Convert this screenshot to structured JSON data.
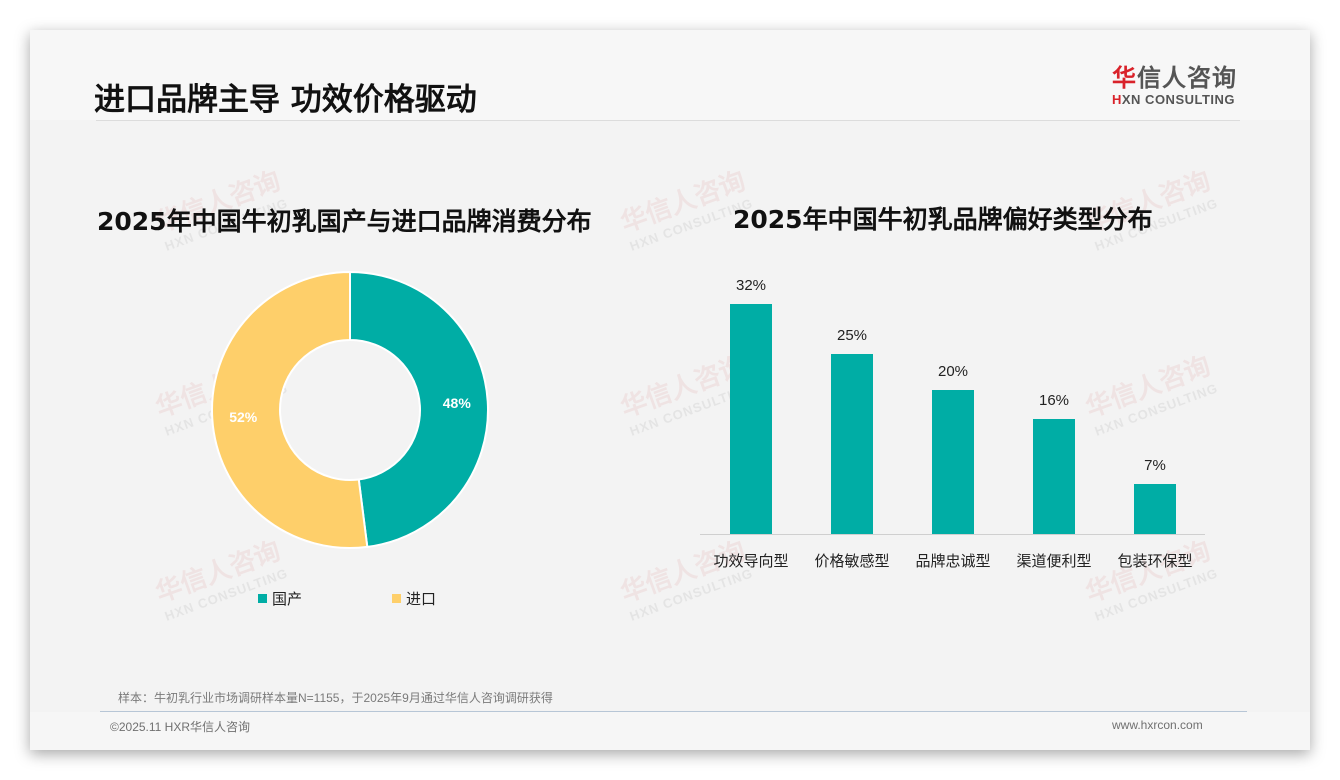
{
  "header": {
    "title": "进口品牌主导 功效价格驱动",
    "logo_cn_first": "华",
    "logo_cn_rest": "信人咨询",
    "logo_en_first": "H",
    "logo_en_rest": "XN CONSULTING"
  },
  "watermark": {
    "cn": "华信人咨询",
    "en": "HXN CONSULTING"
  },
  "colors": {
    "teal": "#00ada5",
    "yellow": "#fecf6a",
    "title_red": "#d9222a"
  },
  "left_chart": {
    "title": "2025年中国牛初乳国产与进口品牌消费分布",
    "segments": [
      {
        "label": "国产",
        "value": 48,
        "display": "48%",
        "color": "#00ada5"
      },
      {
        "label": "进口",
        "value": 52,
        "display": "52%",
        "color": "#fecf6a"
      }
    ]
  },
  "right_chart": {
    "title": "2025年中国牛初乳品牌偏好类型分布",
    "bars": [
      {
        "label": "功效导向型",
        "value": 32,
        "display": "32%"
      },
      {
        "label": "价格敏感型",
        "value": 25,
        "display": "25%"
      },
      {
        "label": "品牌忠诚型",
        "value": 20,
        "display": "20%"
      },
      {
        "label": "渠道便利型",
        "value": 16,
        "display": "16%"
      },
      {
        "label": "包装环保型",
        "value": 7,
        "display": "7%"
      }
    ]
  },
  "chart_data": [
    {
      "type": "pie",
      "variant": "donut",
      "title": "2025年中国牛初乳国产与进口品牌消费分布",
      "categories": [
        "国产",
        "进口"
      ],
      "values": [
        48,
        52
      ],
      "unit": "%",
      "legend_position": "bottom",
      "colors": [
        "#00ada5",
        "#fecf6a"
      ]
    },
    {
      "type": "bar",
      "title": "2025年中国牛初乳品牌偏好类型分布",
      "categories": [
        "功效导向型",
        "价格敏感型",
        "品牌忠诚型",
        "渠道便利型",
        "包装环保型"
      ],
      "values": [
        32,
        25,
        20,
        16,
        7
      ],
      "unit": "%",
      "xlabel": "",
      "ylabel": "",
      "grid": false,
      "data_labels": true,
      "color": "#00ada5"
    }
  ],
  "footer": {
    "source_note": "样本：牛初乳行业市场调研样本量N=1155，于2025年9月通过华信人咨询调研获得",
    "copyright": "©2025.11 HXR华信人咨询",
    "website": "www.hxrcon.com"
  }
}
